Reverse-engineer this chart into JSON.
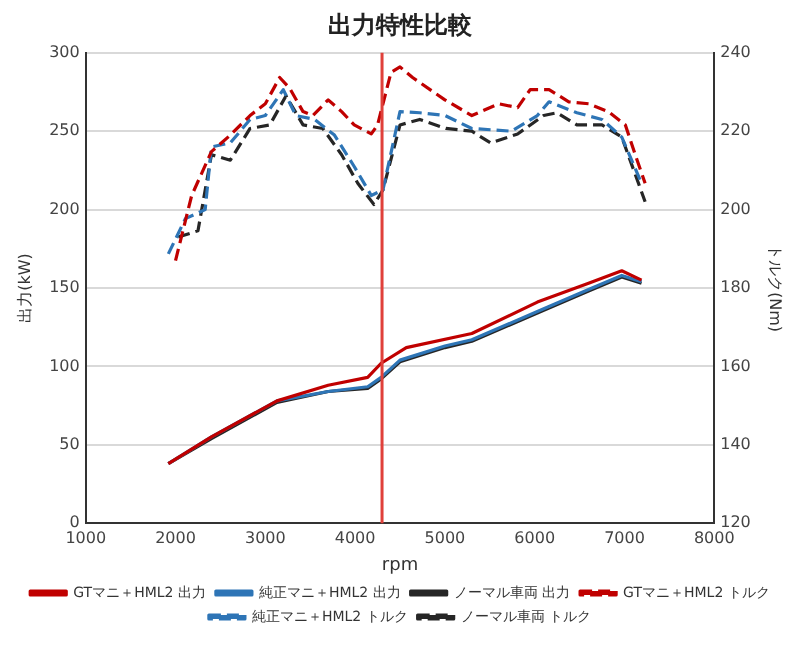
{
  "chart_data": {
    "type": "line",
    "title": "出力特性比較",
    "xlabel": "rpm",
    "ylabel": "出力(kW)",
    "y2label": "トルク(Nm)",
    "xlim": [
      1000,
      8000
    ],
    "xticks": [
      1000,
      2000,
      3000,
      4000,
      5000,
      6000,
      7000,
      8000
    ],
    "ylim": [
      0,
      300
    ],
    "yticks": [
      0,
      50,
      100,
      150,
      200,
      250,
      300
    ],
    "y2lim": [
      120,
      240
    ],
    "y2ticks": [
      120,
      140,
      160,
      180,
      200,
      220,
      240
    ],
    "grid": "y",
    "legend": "bottom",
    "marker": "none",
    "ref_lines": [
      {
        "axis": "x",
        "value": 4300,
        "color": "#e0403a"
      }
    ],
    "series": [
      {
        "name": "GTマニ＋HML2 出力",
        "color": "#c00000",
        "line_style": "solid",
        "x": [
          1920,
          2400,
          3130,
          3700,
          4140,
          4290,
          4570,
          5300,
          6030,
          6600,
          6970,
          7190
        ],
        "values": [
          38,
          55,
          78,
          88,
          93,
          102,
          112,
          121,
          141,
          153,
          161,
          155
        ]
      },
      {
        "name": "純正マニ＋HML2 出力",
        "color": "#2e75b6",
        "line_style": "solid",
        "x": [
          1920,
          2400,
          3130,
          3700,
          4140,
          4290,
          4500,
          5000,
          5300,
          6030,
          6600,
          6970,
          7190
        ],
        "values": [
          38,
          55,
          78,
          84,
          87,
          93,
          104,
          113,
          117,
          135,
          149,
          158,
          154
        ]
      },
      {
        "name": "ノーマル車両 出力",
        "color": "#262626",
        "line_style": "solid",
        "x": [
          1920,
          2400,
          3130,
          3700,
          4140,
          4290,
          4500,
          5000,
          5300,
          6030,
          6600,
          6970,
          7190
        ],
        "values": [
          38,
          54,
          77,
          84,
          86,
          92,
          103,
          112,
          116,
          134,
          148,
          157,
          153
        ]
      },
      {
        "name": "GTマニ＋HML2 トルク",
        "color": "#c00000",
        "line_style": "dashed",
        "axis": "y2",
        "x": [
          2000,
          2180,
          2400,
          2610,
          2830,
          3000,
          3160,
          3270,
          3420,
          3530,
          3700,
          3850,
          3990,
          4180,
          4250,
          4400,
          4500,
          4640,
          5000,
          5300,
          5600,
          5810,
          5950,
          6160,
          6380,
          6600,
          6820,
          7010,
          7120,
          7230
        ],
        "values": [
          187,
          203.6,
          214.8,
          219,
          224,
          227,
          233.7,
          231,
          225,
          224,
          228,
          225,
          221.6,
          219.3,
          221.6,
          235,
          236.4,
          233.7,
          228,
          224,
          227,
          226,
          230.6,
          230.6,
          227.5,
          227,
          225,
          221.6,
          214,
          206.7
        ]
      },
      {
        "name": "純正マニ＋HML2 トルク",
        "color": "#2e75b6",
        "line_style": "dashed",
        "axis": "y2",
        "x": [
          1920,
          2110,
          2330,
          2400,
          2610,
          2830,
          3000,
          3200,
          3340,
          3550,
          3770,
          3990,
          4180,
          4310,
          4500,
          4720,
          5000,
          5300,
          5740,
          6030,
          6160,
          6470,
          6750,
          6970,
          7190
        ],
        "values": [
          188.7,
          197.7,
          200,
          216,
          217,
          223,
          224,
          230.6,
          224,
          223,
          219,
          211,
          203.6,
          205,
          225,
          224.7,
          224,
          220.7,
          220,
          224,
          227.5,
          224.7,
          223,
          218.5,
          206.7
        ]
      },
      {
        "name": "ノーマル車両 トルク",
        "color": "#262626",
        "line_style": "dashed",
        "axis": "y2",
        "x": [
          2030,
          2250,
          2400,
          2610,
          2830,
          3050,
          3230,
          3420,
          3640,
          3850,
          4030,
          4210,
          4310,
          4500,
          4720,
          5010,
          5300,
          5510,
          5810,
          6100,
          6250,
          6470,
          6750,
          6970,
          7230
        ],
        "values": [
          193,
          194.6,
          214,
          212.6,
          220.7,
          221.6,
          229,
          221.6,
          220.7,
          214,
          206.7,
          201.3,
          205,
          221.6,
          223,
          220.7,
          220,
          217,
          219.3,
          224,
          224.7,
          221.6,
          221.6,
          218.5,
          202
        ]
      }
    ]
  }
}
